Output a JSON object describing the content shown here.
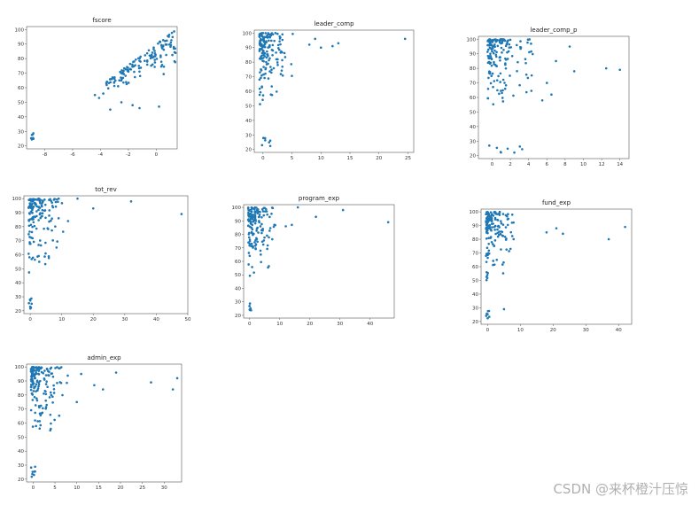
{
  "chart_data": [
    {
      "name": "fscore",
      "type": "scatter",
      "title": "fscore",
      "xlim": [
        -9.3,
        1.5
      ],
      "ylim": [
        18,
        102
      ],
      "xticks": [
        -8,
        -6,
        -4,
        -2,
        0
      ],
      "yticks": [
        20,
        30,
        40,
        50,
        60,
        70,
        80,
        90,
        100
      ],
      "color": "#1f77b4"
    },
    {
      "name": "leader_comp",
      "type": "scatter",
      "title": "leader_comp",
      "xlim": [
        -1.5,
        26
      ],
      "ylim": [
        18,
        102
      ],
      "xticks": [
        0,
        5,
        10,
        15,
        20,
        25
      ],
      "yticks": [
        20,
        30,
        40,
        50,
        60,
        70,
        80,
        90,
        100
      ],
      "color": "#1f77b4"
    },
    {
      "name": "leader_comp_p",
      "type": "scatter",
      "title": "leader_comp_p",
      "xlim": [
        -1.5,
        15
      ],
      "ylim": [
        18,
        102
      ],
      "xticks": [
        0,
        2,
        4,
        6,
        8,
        10,
        12,
        14
      ],
      "yticks": [
        20,
        30,
        40,
        50,
        60,
        70,
        80,
        90,
        100
      ],
      "color": "#1f77b4"
    },
    {
      "name": "tot_rev",
      "type": "scatter",
      "title": "tot_rev",
      "xlim": [
        -2,
        50
      ],
      "ylim": [
        18,
        102
      ],
      "xticks": [
        0,
        10,
        20,
        30,
        40,
        50
      ],
      "yticks": [
        20,
        30,
        40,
        50,
        60,
        70,
        80,
        90,
        100
      ],
      "color": "#1f77b4"
    },
    {
      "name": "program_exp",
      "type": "scatter",
      "title": "program_exp",
      "xlim": [
        -2,
        48
      ],
      "ylim": [
        18,
        102
      ],
      "xticks": [
        0,
        10,
        20,
        30,
        40
      ],
      "yticks": [
        20,
        30,
        40,
        50,
        60,
        70,
        80,
        90,
        100
      ],
      "color": "#1f77b4"
    },
    {
      "name": "fund_exp",
      "type": "scatter",
      "title": "fund_exp",
      "xlim": [
        -2,
        44
      ],
      "ylim": [
        18,
        102
      ],
      "xticks": [
        0,
        10,
        20,
        30,
        40
      ],
      "yticks": [
        20,
        30,
        40,
        50,
        60,
        70,
        80,
        90,
        100
      ],
      "color": "#1f77b4"
    },
    {
      "name": "admin_exp",
      "type": "scatter",
      "title": "admin_exp",
      "xlim": [
        -1.5,
        34
      ],
      "ylim": [
        18,
        102
      ],
      "xticks": [
        0,
        5,
        10,
        15,
        20,
        25,
        30
      ],
      "yticks": [
        20,
        30,
        40,
        50,
        60,
        70,
        80,
        90,
        100
      ],
      "color": "#1f77b4"
    }
  ],
  "watermark": "CSDN @来杯橙汁压惊"
}
